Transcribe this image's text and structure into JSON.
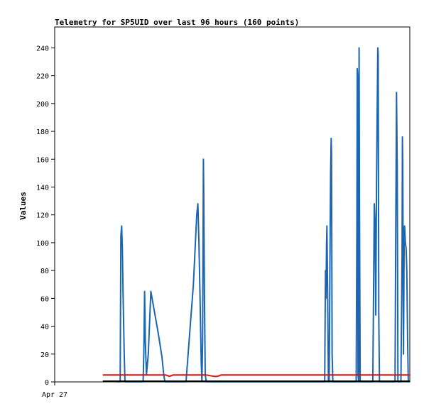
{
  "chart_data": {
    "type": "line",
    "title": "Telemetry for SP5UID over last 96 hours (160 points)",
    "xlabel": "",
    "ylabel": "Values",
    "xlim": [
      0,
      96
    ],
    "ylim": [
      0,
      255
    ],
    "yticks": [
      0,
      20,
      40,
      60,
      80,
      100,
      120,
      140,
      160,
      180,
      200,
      220,
      240
    ],
    "xticks": [
      {
        "x": 0,
        "label": "Apr 27"
      }
    ],
    "grid": false,
    "legend": "none",
    "colors": {
      "series1": "#1a66b3",
      "series2": "#e01010",
      "series3": "#000000"
    },
    "series": [
      {
        "key": "s1",
        "color": "#1a66b3",
        "points": [
          [
            17.0,
            0
          ],
          [
            17.7,
            0
          ],
          [
            17.9,
            105
          ],
          [
            18.1,
            112
          ],
          [
            18.3,
            95
          ],
          [
            18.5,
            60
          ],
          [
            18.8,
            20
          ],
          [
            19.0,
            0
          ],
          [
            19.3,
            0
          ],
          [
            23.5,
            0
          ],
          [
            23.9,
            0
          ],
          [
            24.1,
            20
          ],
          [
            24.3,
            65
          ],
          [
            24.5,
            30
          ],
          [
            24.8,
            5
          ],
          [
            25.3,
            20
          ],
          [
            26.0,
            65
          ],
          [
            27.0,
            50
          ],
          [
            28.0,
            35
          ],
          [
            29.0,
            18
          ],
          [
            29.5,
            5
          ],
          [
            29.8,
            0
          ],
          [
            35.2,
            0
          ],
          [
            35.5,
            0
          ],
          [
            37.5,
            70
          ],
          [
            38.4,
            120
          ],
          [
            38.7,
            128
          ],
          [
            39.0,
            100
          ],
          [
            39.3,
            60
          ],
          [
            39.6,
            15
          ],
          [
            39.8,
            0
          ],
          [
            40.0,
            30
          ],
          [
            40.2,
            160
          ],
          [
            40.3,
            135
          ],
          [
            40.5,
            60
          ],
          [
            40.7,
            5
          ],
          [
            41.0,
            0
          ],
          [
            72.8,
            0
          ],
          [
            73.0,
            0
          ],
          [
            73.1,
            40
          ],
          [
            73.2,
            80
          ],
          [
            73.35,
            60
          ],
          [
            73.5,
            100
          ],
          [
            73.6,
            112
          ],
          [
            73.8,
            60
          ],
          [
            74.0,
            0
          ],
          [
            74.2,
            0
          ],
          [
            74.4,
            80
          ],
          [
            74.6,
            150
          ],
          [
            74.75,
            175
          ],
          [
            74.85,
            165
          ],
          [
            75.0,
            20
          ],
          [
            75.2,
            0
          ],
          [
            81.2,
            0
          ],
          [
            81.5,
            0
          ],
          [
            81.7,
            112
          ],
          [
            81.8,
            225
          ],
          [
            81.9,
            220
          ],
          [
            82.0,
            5
          ],
          [
            82.2,
            0
          ],
          [
            82.3,
            240
          ],
          [
            82.4,
            120
          ],
          [
            82.6,
            0
          ],
          [
            82.8,
            0
          ],
          [
            85.7,
            0
          ],
          [
            86.0,
            0
          ],
          [
            86.2,
            65
          ],
          [
            86.4,
            128
          ],
          [
            86.6,
            115
          ],
          [
            86.8,
            48
          ],
          [
            87.0,
            140
          ],
          [
            87.2,
            200
          ],
          [
            87.35,
            240
          ],
          [
            87.45,
            235
          ],
          [
            87.6,
            50
          ],
          [
            87.8,
            0
          ],
          [
            88.0,
            0
          ],
          [
            91.8,
            0
          ],
          [
            92.0,
            0
          ],
          [
            92.2,
            105
          ],
          [
            92.4,
            208
          ],
          [
            92.6,
            155
          ],
          [
            92.8,
            0
          ],
          [
            93.0,
            0
          ],
          [
            93.6,
            0
          ],
          [
            93.9,
            90
          ],
          [
            94.0,
            176
          ],
          [
            94.1,
            160
          ],
          [
            94.3,
            20
          ],
          [
            94.5,
            110
          ],
          [
            94.6,
            112
          ],
          [
            94.8,
            100
          ],
          [
            95.0,
            96
          ],
          [
            95.2,
            80
          ],
          [
            95.4,
            30
          ],
          [
            95.6,
            0
          ],
          [
            95.9,
            0
          ]
        ]
      },
      {
        "key": "s2",
        "color": "#e01010",
        "points": [
          [
            13,
            5
          ],
          [
            30,
            5
          ],
          [
            31,
            4
          ],
          [
            32,
            5
          ],
          [
            41,
            5
          ],
          [
            43,
            4
          ],
          [
            44,
            4
          ],
          [
            45,
            5
          ],
          [
            96,
            5
          ]
        ]
      },
      {
        "key": "s3",
        "color": "#000000",
        "points": [
          [
            13,
            0.5
          ],
          [
            96,
            0.5
          ]
        ]
      }
    ]
  }
}
